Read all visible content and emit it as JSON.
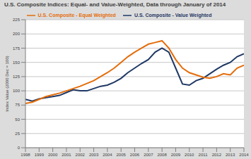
{
  "chart_data": {
    "type": "line",
    "title": "U.S. Composite Indices: Equal- and Value-Weighted, Data through January of 2014",
    "y_label": "Index Value (2000 Dec = 100)",
    "x": [
      1998,
      1998.5,
      1999,
      1999.5,
      2000,
      2000.5,
      2001,
      2001.5,
      2002,
      2002.5,
      2003,
      2003.5,
      2004,
      2004.5,
      2005,
      2005.5,
      2006,
      2006.5,
      2007,
      2007.5,
      2008,
      2008.5,
      2009,
      2009.5,
      2010,
      2010.5,
      2011,
      2011.5,
      2012,
      2012.5,
      2013,
      2013.5,
      2014
    ],
    "series": [
      {
        "name": "U.S. Composite - Value Weighted",
        "color": "#1f3864",
        "values": [
          85,
          82,
          86,
          88,
          90,
          92,
          97,
          102,
          100,
          100,
          104,
          108,
          110,
          115,
          122,
          132,
          140,
          148,
          155,
          168,
          175,
          168,
          140,
          112,
          110,
          118,
          122,
          130,
          138,
          145,
          150,
          160,
          165
        ]
      },
      {
        "name": "U.S. Composite - Equal Weighted",
        "color": "#e46c0a",
        "values": [
          78,
          80,
          85,
          90,
          93,
          96,
          100,
          104,
          108,
          113,
          118,
          125,
          132,
          140,
          150,
          160,
          168,
          175,
          182,
          185,
          188,
          175,
          155,
          140,
          132,
          128,
          124,
          122,
          125,
          130,
          128,
          140,
          145
        ]
      }
    ],
    "xlim": [
      1998,
      2014
    ],
    "xticks": [
      1998,
      1999,
      2000,
      2001,
      2002,
      2003,
      2004,
      2005,
      2006,
      2007,
      2008,
      2009,
      2010,
      2011,
      2012,
      2013,
      2014
    ],
    "ylim": [
      0,
      225
    ],
    "yticks": [
      0,
      25,
      50,
      75,
      100,
      125,
      150,
      175,
      200,
      225
    ],
    "grid": true,
    "legend": "top",
    "marker": "none"
  }
}
